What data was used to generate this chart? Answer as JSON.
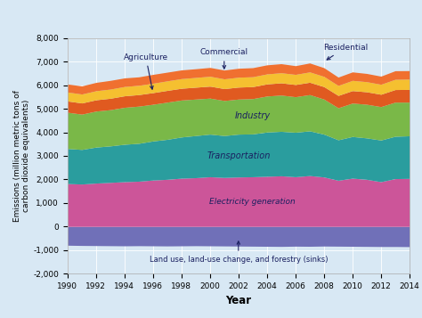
{
  "years": [
    1990,
    1991,
    1992,
    1993,
    1994,
    1995,
    1996,
    1997,
    1998,
    1999,
    2000,
    2001,
    2002,
    2003,
    2004,
    2005,
    2006,
    2007,
    2008,
    2009,
    2010,
    2011,
    2012,
    2013,
    2014
  ],
  "electricity": [
    1820,
    1800,
    1840,
    1870,
    1900,
    1920,
    1970,
    2000,
    2050,
    2070,
    2110,
    2080,
    2100,
    2110,
    2130,
    2150,
    2110,
    2160,
    2100,
    1960,
    2050,
    2000,
    1900,
    2030,
    2040
  ],
  "transportation": [
    1490,
    1470,
    1530,
    1550,
    1590,
    1610,
    1660,
    1700,
    1750,
    1790,
    1810,
    1780,
    1820,
    1820,
    1880,
    1890,
    1890,
    1900,
    1820,
    1720,
    1770,
    1760,
    1770,
    1800,
    1810
  ],
  "industry": [
    1540,
    1500,
    1530,
    1540,
    1570,
    1580,
    1560,
    1580,
    1570,
    1550,
    1530,
    1490,
    1490,
    1500,
    1530,
    1540,
    1510,
    1540,
    1490,
    1360,
    1420,
    1430,
    1420,
    1450,
    1430
  ],
  "agriculture": [
    480,
    475,
    480,
    485,
    490,
    490,
    495,
    500,
    500,
    505,
    510,
    505,
    510,
    510,
    515,
    520,
    520,
    525,
    530,
    525,
    530,
    530,
    525,
    535,
    540
  ],
  "commercial": [
    380,
    380,
    385,
    390,
    395,
    395,
    400,
    405,
    410,
    415,
    420,
    415,
    420,
    420,
    425,
    430,
    430,
    440,
    435,
    425,
    435,
    430,
    425,
    435,
    440
  ],
  "residential": [
    340,
    345,
    355,
    370,
    365,
    360,
    375,
    370,
    370,
    370,
    375,
    375,
    380,
    385,
    385,
    385,
    370,
    380,
    370,
    355,
    360,
    350,
    345,
    365,
    360
  ],
  "land_use": [
    -800,
    -810,
    -815,
    -820,
    -825,
    -820,
    -825,
    -830,
    -825,
    -820,
    -825,
    -830,
    -835,
    -840,
    -845,
    -850,
    -840,
    -845,
    -835,
    -840,
    -845,
    -850,
    -855,
    -855,
    -860
  ],
  "colors": {
    "electricity": "#cc5599",
    "transportation": "#2a9d9e",
    "industry": "#7ab848",
    "agriculture": "#e05a20",
    "commercial": "#f5c030",
    "residential": "#f07030",
    "land_use": "#7070b8"
  },
  "ylabel": "Emissions (million metric tons of\ncarbon dioxide equivalents)",
  "xlabel": "Year",
  "ylim": [
    -2000,
    8000
  ],
  "yticks": [
    -2000,
    -1000,
    0,
    1000,
    2000,
    3000,
    4000,
    5000,
    6000,
    7000,
    8000
  ],
  "xticks": [
    1990,
    1992,
    1994,
    1996,
    1998,
    2000,
    2002,
    2004,
    2006,
    2008,
    2010,
    2012,
    2014
  ],
  "fig_bg": "#d8e8f4",
  "ax_bg": "#d8e8f4",
  "text_color": "#1a2060",
  "grid_color": "#ffffff",
  "annot_fontsize": 6.5,
  "label_fontsize": 7.0,
  "tick_fontsize": 6.5,
  "xlabel_fontsize": 8.5,
  "ylabel_fontsize": 6.5
}
